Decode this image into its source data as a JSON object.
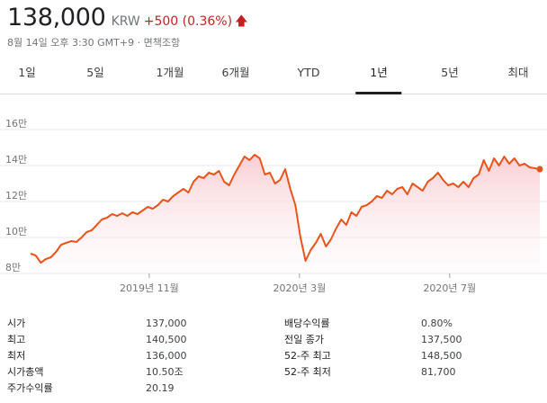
{
  "quote": {
    "price": "138,000",
    "currency": "KRW",
    "change": "+500 (0.36%)",
    "direction_icon": "arrow-up-icon",
    "color": "#c5221f",
    "timestamp": "8월 14일 오후 3:30 GMT+9 · 면책조항"
  },
  "tabs": [
    {
      "label": "1일"
    },
    {
      "label": "5일"
    },
    {
      "label": "1개월"
    },
    {
      "label": "6개월"
    },
    {
      "label": "YTD"
    },
    {
      "label": "1년",
      "active": true
    },
    {
      "label": "5년"
    },
    {
      "label": "최대"
    }
  ],
  "chart_data": {
    "type": "area",
    "line_color": "#e8551c",
    "fill_color": "#fbe3e6",
    "y_ticks": [
      "16만",
      "14만",
      "12만",
      "10만",
      "8만"
    ],
    "y_tick_values": [
      160000,
      140000,
      120000,
      100000,
      80000
    ],
    "ylim": [
      80000,
      160000
    ],
    "x_ticks": [
      "2019년 11월",
      "2020년 3월",
      "2020년 7월"
    ],
    "x_tick_positions": [
      0.233,
      0.528,
      0.823
    ],
    "x": [
      0,
      0.01,
      0.02,
      0.03,
      0.04,
      0.05,
      0.06,
      0.07,
      0.08,
      0.09,
      0.1,
      0.11,
      0.12,
      0.13,
      0.14,
      0.15,
      0.16,
      0.17,
      0.18,
      0.19,
      0.2,
      0.21,
      0.22,
      0.23,
      0.24,
      0.25,
      0.26,
      0.27,
      0.28,
      0.29,
      0.3,
      0.31,
      0.32,
      0.33,
      0.34,
      0.35,
      0.36,
      0.37,
      0.38,
      0.39,
      0.4,
      0.41,
      0.42,
      0.43,
      0.44,
      0.45,
      0.46,
      0.47,
      0.48,
      0.49,
      0.5,
      0.51,
      0.52,
      0.53,
      0.54,
      0.55,
      0.56,
      0.57,
      0.58,
      0.59,
      0.6,
      0.61,
      0.62,
      0.63,
      0.64,
      0.65,
      0.66,
      0.67,
      0.68,
      0.69,
      0.7,
      0.71,
      0.72,
      0.73,
      0.74,
      0.75,
      0.76,
      0.77,
      0.78,
      0.79,
      0.8,
      0.81,
      0.82,
      0.83,
      0.84,
      0.85,
      0.86,
      0.87,
      0.88,
      0.89,
      0.9,
      0.91,
      0.92,
      0.93,
      0.94,
      0.95,
      0.96,
      0.97,
      0.98,
      0.99,
      1.0
    ],
    "values": [
      91000,
      90000,
      86000,
      88000,
      89000,
      92000,
      96000,
      97000,
      98000,
      97500,
      100000,
      103000,
      104000,
      107000,
      110000,
      111000,
      113000,
      112000,
      113500,
      112000,
      114000,
      113000,
      115000,
      117000,
      116000,
      118000,
      121000,
      120000,
      123000,
      125000,
      127000,
      125000,
      131000,
      134000,
      133000,
      136000,
      135000,
      137000,
      131000,
      129000,
      135000,
      140000,
      145000,
      143000,
      146000,
      144000,
      135000,
      136000,
      130000,
      132000,
      138000,
      127000,
      118000,
      100000,
      87000,
      93000,
      97000,
      102000,
      95000,
      99000,
      105000,
      110000,
      107000,
      114000,
      112000,
      117000,
      118000,
      120000,
      123000,
      122000,
      126000,
      124000,
      127000,
      128000,
      124000,
      130000,
      128000,
      126000,
      131000,
      133000,
      136000,
      132000,
      129000,
      130000,
      128000,
      131000,
      128000,
      133000,
      135000,
      143000,
      137000,
      144000,
      140000,
      145000,
      141000,
      144000,
      140000,
      141000,
      139000,
      138500,
      138000
    ]
  },
  "stats": {
    "left": [
      {
        "label": "시가",
        "value": "137,000"
      },
      {
        "label": "최고",
        "value": "140,500"
      },
      {
        "label": "최저",
        "value": "136,000"
      },
      {
        "label": "시가총액",
        "value": "10.50조"
      },
      {
        "label": "주가수익률",
        "value": "20.19"
      }
    ],
    "right": [
      {
        "label": "배당수익률",
        "value": "0.80%"
      },
      {
        "label": "전일 종가",
        "value": "137,500"
      },
      {
        "label": "52-주 최고",
        "value": "148,500"
      },
      {
        "label": "52-주 최저",
        "value": "81,700"
      }
    ]
  }
}
